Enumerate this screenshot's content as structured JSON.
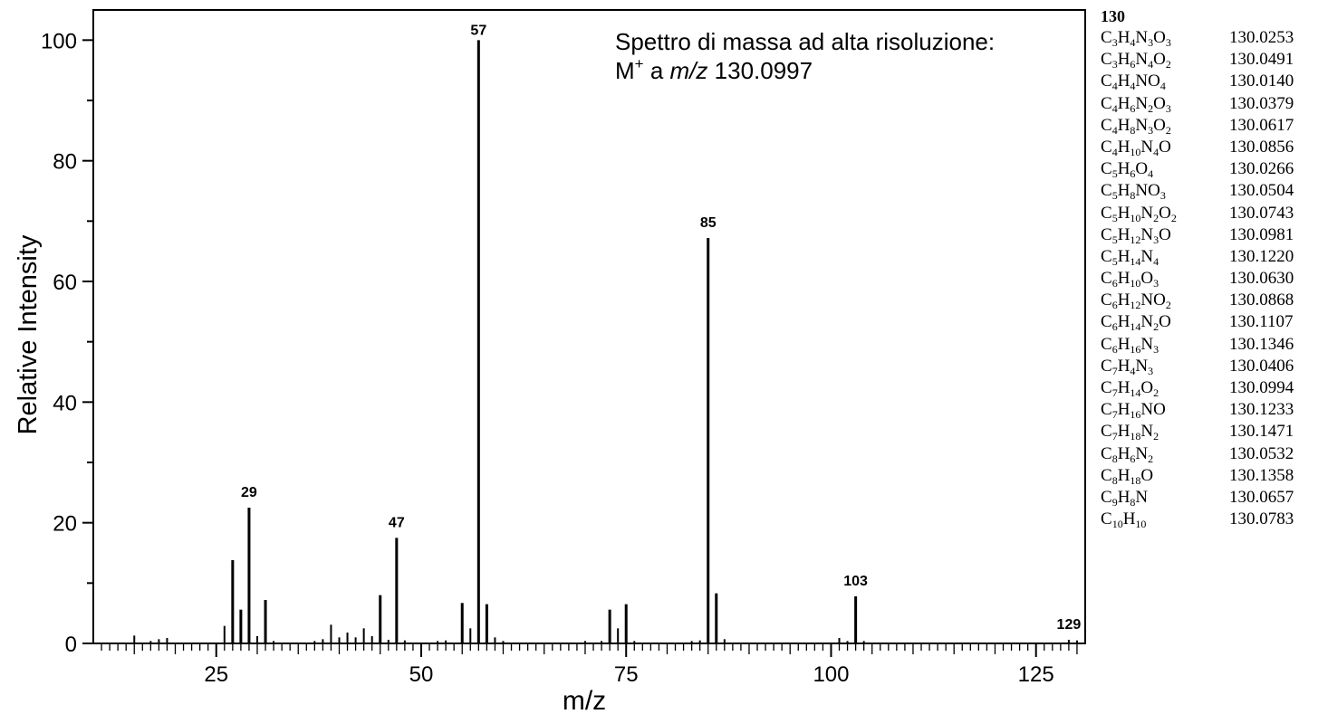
{
  "chart_data": {
    "type": "bar",
    "xlabel": "m/z",
    "ylabel": "Relative Intensity",
    "xlim": [
      10,
      131
    ],
    "ylim": [
      0,
      105
    ],
    "xticks": [
      25,
      50,
      75,
      100,
      125
    ],
    "yticks": [
      0,
      20,
      40,
      60,
      80,
      100
    ],
    "annotation": {
      "line1": "Spettro di massa ad alta risoluzione:",
      "line2_prefix": "M",
      "line2_sup": "+",
      "line2_mid": " a ",
      "line2_italic": "m/z",
      "line2_value": " 130.0997"
    },
    "peaks": [
      {
        "x": 15,
        "y": 1.3
      },
      {
        "x": 17,
        "y": 0.4
      },
      {
        "x": 18,
        "y": 0.7
      },
      {
        "x": 19,
        "y": 0.9
      },
      {
        "x": 26,
        "y": 2.9
      },
      {
        "x": 27,
        "y": 13.8
      },
      {
        "x": 28,
        "y": 5.6
      },
      {
        "x": 29,
        "y": 22.5,
        "label": "29"
      },
      {
        "x": 30,
        "y": 1.2
      },
      {
        "x": 31,
        "y": 7.2
      },
      {
        "x": 32,
        "y": 0.4
      },
      {
        "x": 37,
        "y": 0.4
      },
      {
        "x": 38,
        "y": 0.7
      },
      {
        "x": 39,
        "y": 3.1
      },
      {
        "x": 40,
        "y": 1.0
      },
      {
        "x": 41,
        "y": 1.8
      },
      {
        "x": 42,
        "y": 1.0
      },
      {
        "x": 43,
        "y": 2.5
      },
      {
        "x": 44,
        "y": 1.2
      },
      {
        "x": 45,
        "y": 8.0
      },
      {
        "x": 46,
        "y": 0.6
      },
      {
        "x": 47,
        "y": 17.5,
        "label": "47"
      },
      {
        "x": 48,
        "y": 0.5
      },
      {
        "x": 52,
        "y": 0.4
      },
      {
        "x": 53,
        "y": 0.5
      },
      {
        "x": 55,
        "y": 6.7
      },
      {
        "x": 56,
        "y": 2.5
      },
      {
        "x": 57,
        "y": 100,
        "label": "57"
      },
      {
        "x": 58,
        "y": 6.5
      },
      {
        "x": 59,
        "y": 1.0
      },
      {
        "x": 60,
        "y": 0.4
      },
      {
        "x": 70,
        "y": 0.4
      },
      {
        "x": 72,
        "y": 0.4
      },
      {
        "x": 73,
        "y": 5.6
      },
      {
        "x": 74,
        "y": 2.5
      },
      {
        "x": 75,
        "y": 6.5
      },
      {
        "x": 76,
        "y": 0.4
      },
      {
        "x": 83,
        "y": 0.4
      },
      {
        "x": 84,
        "y": 0.5
      },
      {
        "x": 85,
        "y": 67.2,
        "label": "85"
      },
      {
        "x": 86,
        "y": 8.3
      },
      {
        "x": 87,
        "y": 0.7
      },
      {
        "x": 101,
        "y": 0.9
      },
      {
        "x": 102,
        "y": 0.4
      },
      {
        "x": 103,
        "y": 7.8,
        "label": "103"
      },
      {
        "x": 104,
        "y": 0.4
      },
      {
        "x": 129,
        "y": 0.6,
        "label": "129"
      },
      {
        "x": 130,
        "y": 0.5
      }
    ]
  },
  "formula_table": {
    "title": "130",
    "rows": [
      {
        "formula": [
          [
            "C",
            ""
          ],
          [
            "3",
            1
          ],
          [
            "H",
            ""
          ],
          [
            "4",
            1
          ],
          [
            "N",
            ""
          ],
          [
            "3",
            1
          ],
          [
            "O",
            ""
          ],
          [
            "3",
            1
          ]
        ],
        "mass": "130.0253"
      },
      {
        "formula": [
          [
            "C",
            ""
          ],
          [
            "3",
            1
          ],
          [
            "H",
            ""
          ],
          [
            "6",
            1
          ],
          [
            "N",
            ""
          ],
          [
            "4",
            1
          ],
          [
            "O",
            ""
          ],
          [
            "2",
            1
          ]
        ],
        "mass": "130.0491"
      },
      {
        "formula": [
          [
            "C",
            ""
          ],
          [
            "4",
            1
          ],
          [
            "H",
            ""
          ],
          [
            "4",
            1
          ],
          [
            "NO",
            ""
          ],
          [
            "4",
            1
          ]
        ],
        "mass": "130.0140"
      },
      {
        "formula": [
          [
            "C",
            ""
          ],
          [
            "4",
            1
          ],
          [
            "H",
            ""
          ],
          [
            "6",
            1
          ],
          [
            "N",
            ""
          ],
          [
            "2",
            1
          ],
          [
            "O",
            ""
          ],
          [
            "3",
            1
          ]
        ],
        "mass": "130.0379"
      },
      {
        "formula": [
          [
            "C",
            ""
          ],
          [
            "4",
            1
          ],
          [
            "H",
            ""
          ],
          [
            "8",
            1
          ],
          [
            "N",
            ""
          ],
          [
            "3",
            1
          ],
          [
            "O",
            ""
          ],
          [
            "2",
            1
          ]
        ],
        "mass": "130.0617"
      },
      {
        "formula": [
          [
            "C",
            ""
          ],
          [
            "4",
            1
          ],
          [
            "H",
            ""
          ],
          [
            "10",
            1
          ],
          [
            "N",
            ""
          ],
          [
            "4",
            1
          ],
          [
            "O",
            ""
          ]
        ],
        "mass": "130.0856"
      },
      {
        "formula": [
          [
            "C",
            ""
          ],
          [
            "5",
            1
          ],
          [
            "H",
            ""
          ],
          [
            "6",
            1
          ],
          [
            "O",
            ""
          ],
          [
            "4",
            1
          ]
        ],
        "mass": "130.0266"
      },
      {
        "formula": [
          [
            "C",
            ""
          ],
          [
            "5",
            1
          ],
          [
            "H",
            ""
          ],
          [
            "8",
            1
          ],
          [
            "NO",
            ""
          ],
          [
            "3",
            1
          ]
        ],
        "mass": "130.0504"
      },
      {
        "formula": [
          [
            "C",
            ""
          ],
          [
            "5",
            1
          ],
          [
            "H",
            ""
          ],
          [
            "10",
            1
          ],
          [
            "N",
            ""
          ],
          [
            "2",
            1
          ],
          [
            "O",
            ""
          ],
          [
            "2",
            1
          ]
        ],
        "mass": "130.0743"
      },
      {
        "formula": [
          [
            "C",
            ""
          ],
          [
            "5",
            1
          ],
          [
            "H",
            ""
          ],
          [
            "12",
            1
          ],
          [
            "N",
            ""
          ],
          [
            "3",
            1
          ],
          [
            "O",
            ""
          ]
        ],
        "mass": "130.0981"
      },
      {
        "formula": [
          [
            "C",
            ""
          ],
          [
            "5",
            1
          ],
          [
            "H",
            ""
          ],
          [
            "14",
            1
          ],
          [
            "N",
            ""
          ],
          [
            "4",
            1
          ]
        ],
        "mass": "130.1220"
      },
      {
        "formula": [
          [
            "C",
            ""
          ],
          [
            "6",
            1
          ],
          [
            "H",
            ""
          ],
          [
            "10",
            1
          ],
          [
            "O",
            ""
          ],
          [
            "3",
            1
          ]
        ],
        "mass": "130.0630"
      },
      {
        "formula": [
          [
            "C",
            ""
          ],
          [
            "6",
            1
          ],
          [
            "H",
            ""
          ],
          [
            "12",
            1
          ],
          [
            "NO",
            ""
          ],
          [
            "2",
            1
          ]
        ],
        "mass": "130.0868"
      },
      {
        "formula": [
          [
            "C",
            ""
          ],
          [
            "6",
            1
          ],
          [
            "H",
            ""
          ],
          [
            "14",
            1
          ],
          [
            "N",
            ""
          ],
          [
            "2",
            1
          ],
          [
            "O",
            ""
          ]
        ],
        "mass": "130.1107"
      },
      {
        "formula": [
          [
            "C",
            ""
          ],
          [
            "6",
            1
          ],
          [
            "H",
            ""
          ],
          [
            "16",
            1
          ],
          [
            "N",
            ""
          ],
          [
            "3",
            1
          ]
        ],
        "mass": "130.1346"
      },
      {
        "formula": [
          [
            "C",
            ""
          ],
          [
            "7",
            1
          ],
          [
            "H",
            ""
          ],
          [
            "4",
            1
          ],
          [
            "N",
            ""
          ],
          [
            "3",
            1
          ]
        ],
        "mass": "130.0406"
      },
      {
        "formula": [
          [
            "C",
            ""
          ],
          [
            "7",
            1
          ],
          [
            "H",
            ""
          ],
          [
            "14",
            1
          ],
          [
            "O",
            ""
          ],
          [
            "2",
            1
          ]
        ],
        "mass": "130.0994"
      },
      {
        "formula": [
          [
            "C",
            ""
          ],
          [
            "7",
            1
          ],
          [
            "H",
            ""
          ],
          [
            "16",
            1
          ],
          [
            "NO",
            ""
          ]
        ],
        "mass": "130.1233"
      },
      {
        "formula": [
          [
            "C",
            ""
          ],
          [
            "7",
            1
          ],
          [
            "H",
            ""
          ],
          [
            "18",
            1
          ],
          [
            "N",
            ""
          ],
          [
            "2",
            1
          ]
        ],
        "mass": "130.1471"
      },
      {
        "formula": [
          [
            "C",
            ""
          ],
          [
            "8",
            1
          ],
          [
            "H",
            ""
          ],
          [
            "6",
            1
          ],
          [
            "N",
            ""
          ],
          [
            "2",
            1
          ]
        ],
        "mass": "130.0532"
      },
      {
        "formula": [
          [
            "C",
            ""
          ],
          [
            "8",
            1
          ],
          [
            "H",
            ""
          ],
          [
            "18",
            1
          ],
          [
            "O",
            ""
          ]
        ],
        "mass": "130.1358"
      },
      {
        "formula": [
          [
            "C",
            ""
          ],
          [
            "9",
            1
          ],
          [
            "H",
            ""
          ],
          [
            "8",
            1
          ],
          [
            "N",
            ""
          ]
        ],
        "mass": "130.0657"
      },
      {
        "formula": [
          [
            "C",
            ""
          ],
          [
            "10",
            1
          ],
          [
            "H",
            ""
          ],
          [
            "10",
            1
          ]
        ],
        "mass": "130.0783"
      }
    ]
  }
}
